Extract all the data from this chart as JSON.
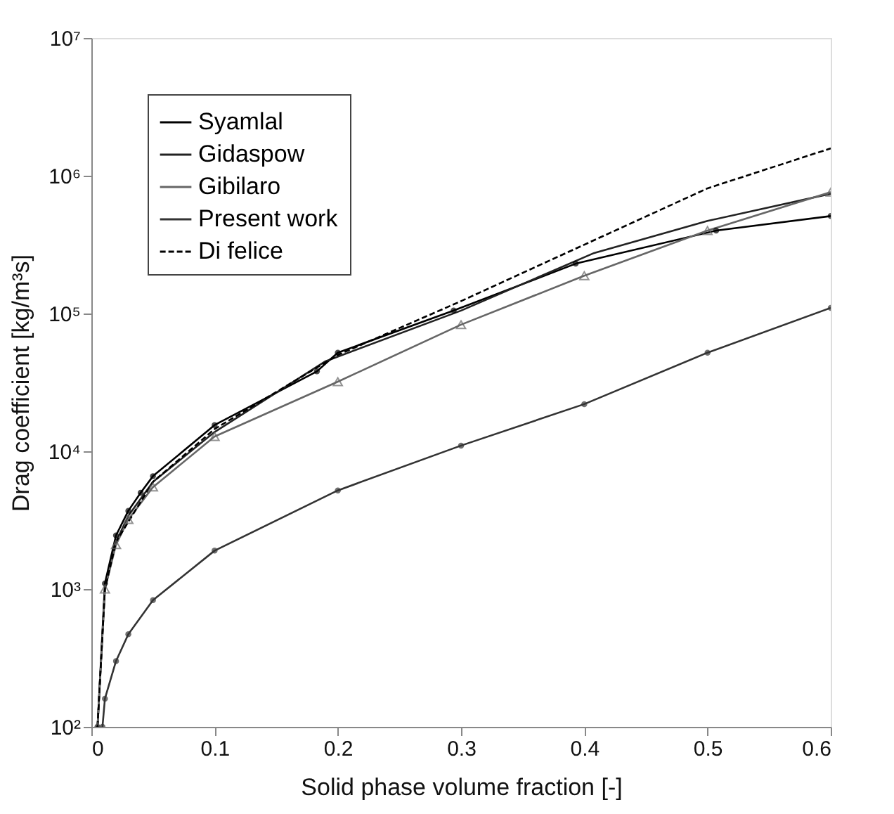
{
  "chart_data": {
    "type": "line",
    "xlabel": "Solid phase volume fraction [-]",
    "ylabel": "Drag coefficient [kg/m³s]",
    "xlim": [
      0,
      0.6
    ],
    "xticks": [
      0,
      0.1,
      0.2,
      0.3,
      0.4,
      0.5,
      0.6
    ],
    "ylim": [
      100,
      10000000
    ],
    "log": "y",
    "yticks": [
      {
        "value": 100,
        "label": "10²"
      },
      {
        "value": 1000,
        "label": "10³"
      },
      {
        "value": 10000,
        "label": "10⁴"
      },
      {
        "value": 100000,
        "label": "10⁵"
      },
      {
        "value": 1000000,
        "label": "10⁶"
      },
      {
        "value": 10000000,
        "label": "10⁷"
      }
    ],
    "grid": false,
    "legend": "top left",
    "series": [
      {
        "name": "Syamlal",
        "color": "#000000",
        "marker": "circle",
        "line_style": "solid",
        "x": [
          0.005,
          0.011,
          0.02,
          0.03,
          0.04,
          0.05,
          0.1,
          0.183,
          0.2,
          0.294,
          0.393,
          0.507,
          0.6
        ],
        "values": [
          100,
          1100,
          2450,
          3700,
          5000,
          6600,
          15500,
          38000,
          52000,
          105000,
          230000,
          400000,
          510000
        ]
      },
      {
        "name": "Gidaspow",
        "color": "#222222",
        "marker": "none",
        "line_style": "solid",
        "x": [
          0.005,
          0.011,
          0.02,
          0.03,
          0.05,
          0.1,
          0.19,
          0.3,
          0.408,
          0.5,
          0.6
        ],
        "values": [
          100,
          1000,
          2200,
          3400,
          6000,
          13800,
          45000,
          105000,
          275000,
          470000,
          740000
        ]
      },
      {
        "name": "Gibilaro",
        "color": "#666666",
        "marker": "triangle",
        "line_style": "solid",
        "x": [
          0.005,
          0.011,
          0.02,
          0.03,
          0.05,
          0.1,
          0.2,
          0.3,
          0.4,
          0.5,
          0.6
        ],
        "values": [
          100,
          1000,
          2100,
          3200,
          5500,
          12800,
          32000,
          83000,
          188000,
          400000,
          760000
        ]
      },
      {
        "name": "Present work",
        "color": "#333333",
        "marker": "circle",
        "line_style": "solid",
        "x": [
          0.009,
          0.011,
          0.02,
          0.03,
          0.05,
          0.1,
          0.2,
          0.3,
          0.4,
          0.5,
          0.6
        ],
        "values": [
          100,
          160,
          300,
          470,
          830,
          1900,
          5200,
          11000,
          22000,
          52000,
          110000
        ]
      },
      {
        "name": "Di felice",
        "color": "#000000",
        "marker": "none",
        "line_style": "dashed",
        "x": [
          0.005,
          0.011,
          0.02,
          0.05,
          0.1,
          0.2,
          0.3,
          0.4,
          0.5,
          0.6
        ],
        "values": [
          100,
          1000,
          2200,
          6000,
          14500,
          50000,
          123000,
          316000,
          810000,
          1580000
        ]
      }
    ]
  }
}
